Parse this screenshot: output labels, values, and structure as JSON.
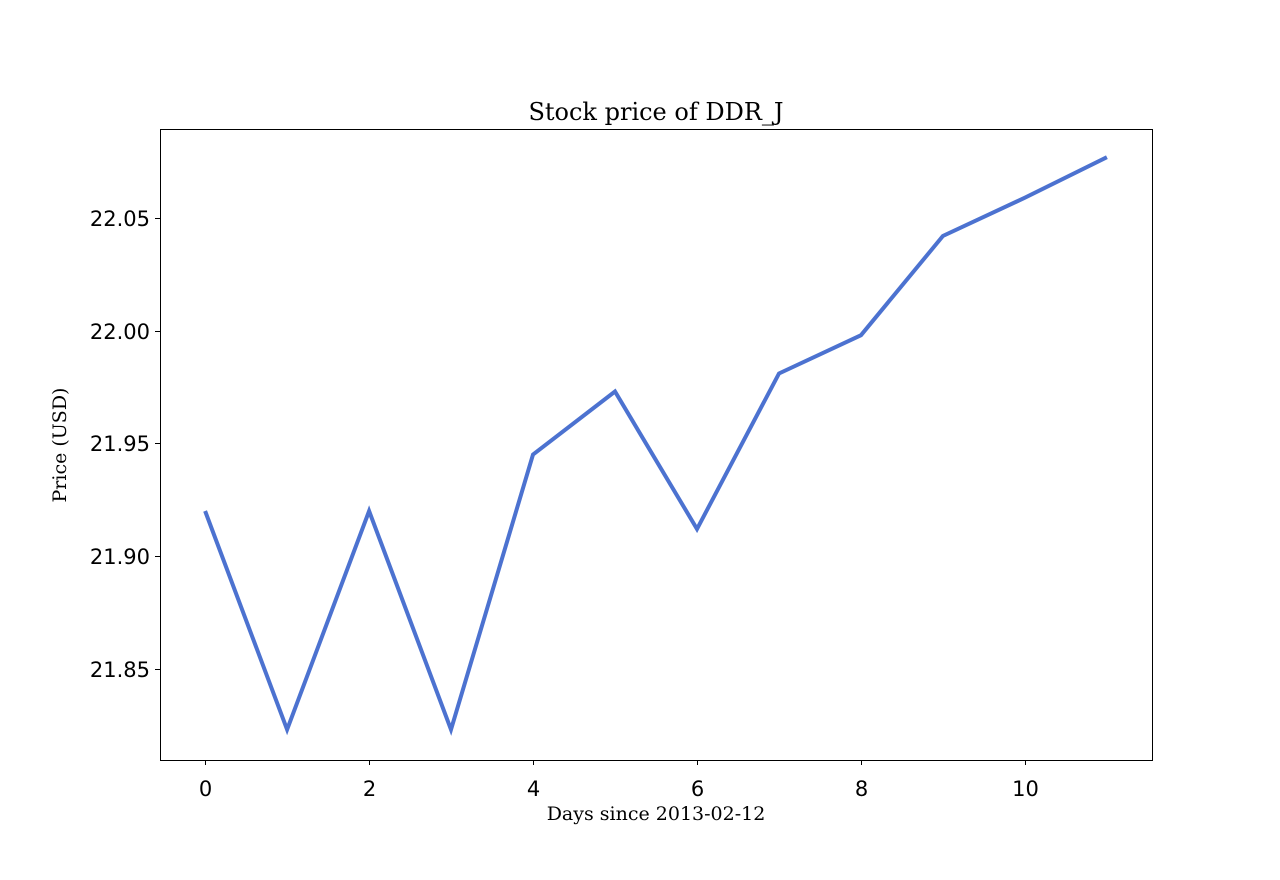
{
  "chart_data": {
    "type": "line",
    "title": "Stock price of DDR_J",
    "xlabel": "Days since 2013-02-12",
    "ylabel": "Price (USD)",
    "x": [
      0,
      1,
      2,
      3,
      4,
      5,
      6,
      7,
      8,
      9,
      10,
      11
    ],
    "series": [
      {
        "values": [
          21.92,
          21.823,
          21.92,
          21.823,
          21.945,
          21.973,
          21.912,
          21.981,
          21.998,
          22.042,
          22.059,
          22.077
        ],
        "color": "#4c72d0"
      }
    ],
    "xlim": [
      -0.55,
      11.55
    ],
    "ylim": [
      21.8095,
      22.0895
    ],
    "xticks": [
      0,
      2,
      4,
      6,
      8,
      10
    ],
    "xtick_labels": [
      "0",
      "2",
      "4",
      "6",
      "8",
      "10"
    ],
    "yticks": [
      21.85,
      21.9,
      21.95,
      22.0,
      22.05
    ],
    "ytick_labels": [
      "21.85",
      "21.90",
      "21.95",
      "22.00",
      "22.05"
    ],
    "grid": false
  }
}
